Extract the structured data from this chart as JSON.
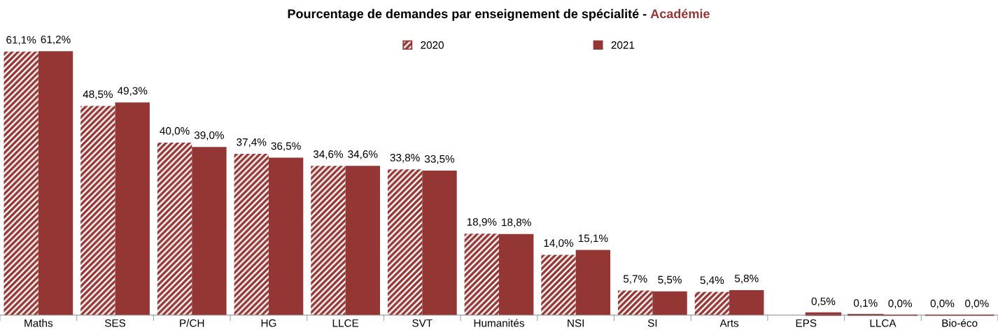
{
  "chart_data": {
    "type": "bar",
    "title": "Pourcentage de demandes par enseignement de spécialité -",
    "subtitle": "Académie",
    "categories": [
      "Maths",
      "SES",
      "P/CH",
      "HG",
      "LLCE",
      "SVT",
      "Humanités",
      "NSI",
      "SI",
      "Arts",
      "EPS",
      "LLCA",
      "Bio-éco"
    ],
    "series": [
      {
        "name": "2020",
        "color": "#943634",
        "values": [
          61.1,
          48.5,
          40.0,
          37.4,
          34.6,
          33.8,
          18.9,
          14.0,
          5.7,
          5.4,
          null,
          0.1,
          0.0
        ],
        "value_labels": [
          "61,1%",
          "48,5%",
          "40,0%",
          "37,4%",
          "34,6%",
          "33,8%",
          "18,9%",
          "14,0%",
          "5,7%",
          "5,4%",
          null,
          "0,1%",
          "0,0%"
        ]
      },
      {
        "name": "2021",
        "color": "#943634",
        "values": [
          61.2,
          49.3,
          39.0,
          36.5,
          34.6,
          33.5,
          18.8,
          15.1,
          5.5,
          5.8,
          0.5,
          0.0,
          0.0
        ],
        "value_labels": [
          "61,2%",
          "49,3%",
          "39,0%",
          "36,5%",
          "34,6%",
          "33,5%",
          "18,8%",
          "15,1%",
          "5,5%",
          "5,8%",
          "0,5%",
          "0,0%",
          "0,0%"
        ]
      }
    ],
    "legend": "top",
    "grid": false
  }
}
